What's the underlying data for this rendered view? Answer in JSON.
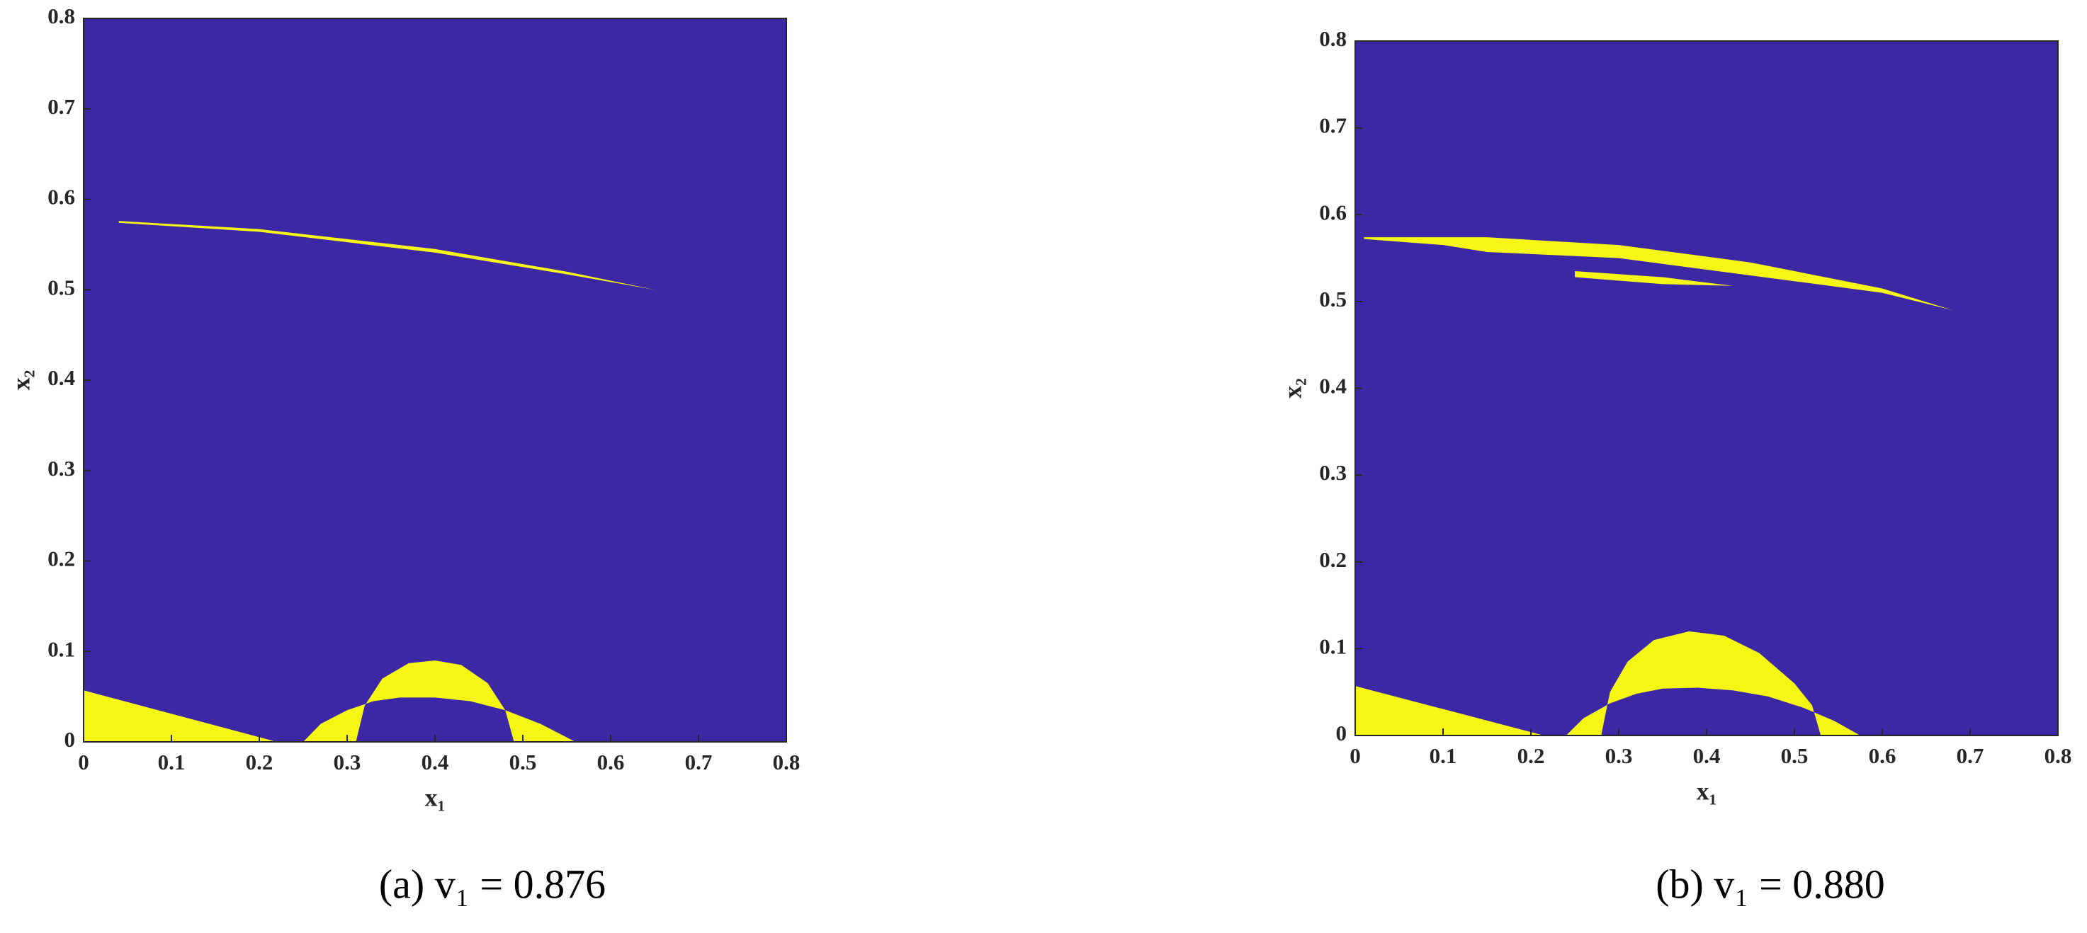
{
  "chart_data": [
    {
      "type": "area",
      "xlabel": "x₁",
      "ylabel": "x₂",
      "caption": "(a) v₁ = 0.876",
      "xlim": [
        0,
        0.8
      ],
      "ylim": [
        0,
        0.8
      ],
      "xticks": [
        0,
        0.1,
        0.2,
        0.3,
        0.4,
        0.5,
        0.6,
        0.7,
        0.8
      ],
      "yticks": [
        0,
        0.1,
        0.2,
        0.3,
        0.4,
        0.5,
        0.6,
        0.7,
        0.8
      ],
      "background": "#3c27a5",
      "region": {
        "color": "#f6f614",
        "x": [
          0,
          0,
          0.22,
          null,
          0.25,
          0.27,
          0.3,
          0.33,
          0.36,
          0.4,
          0.44,
          0.48,
          0.52,
          0.56,
          null,
          0.31,
          0.32,
          0.34,
          0.37,
          0.4,
          0.43,
          0.46,
          0.48,
          0.49,
          null,
          0.04,
          0.2,
          0.4,
          0.55,
          0.65,
          0.55,
          0.4,
          0.2,
          0.04
        ],
        "y": [
          0,
          0.057,
          0,
          null,
          0,
          0.02,
          0.035,
          0.045,
          0.049,
          0.049,
          0.045,
          0.035,
          0.02,
          0,
          null,
          0,
          0.04,
          0.07,
          0.087,
          0.09,
          0.085,
          0.065,
          0.035,
          0,
          null,
          0.576,
          0.567,
          0.545,
          0.52,
          0.5,
          0.517,
          0.541,
          0.564,
          0.574
        ]
      }
    },
    {
      "type": "area",
      "xlabel": "x₁",
      "ylabel": "x₂",
      "caption": "(b) v₁ = 0.880",
      "xlim": [
        0,
        0.8
      ],
      "ylim": [
        0,
        0.8
      ],
      "xticks": [
        0,
        0.1,
        0.2,
        0.3,
        0.4,
        0.5,
        0.6,
        0.7,
        0.8
      ],
      "yticks": [
        0,
        0.1,
        0.2,
        0.3,
        0.4,
        0.5,
        0.6,
        0.7,
        0.8
      ],
      "background": "#3c27a5",
      "region": {
        "color": "#f6f614",
        "x": [
          0,
          0,
          0.215,
          null,
          0.24,
          0.26,
          0.29,
          0.32,
          0.35,
          0.39,
          0.43,
          0.47,
          0.51,
          0.545,
          0.575,
          null,
          0.28,
          0.29,
          0.31,
          0.34,
          0.38,
          0.42,
          0.46,
          0.5,
          0.52,
          0.53,
          null,
          0.01,
          0.15,
          0.3,
          0.45,
          0.6,
          0.68,
          0.6,
          0.45,
          0.3,
          0.15,
          0.1,
          0.01,
          null,
          0.25,
          0.35,
          0.43,
          0.35,
          0.25
        ],
        "y": [
          0,
          0.057,
          0,
          null,
          0,
          0.02,
          0.037,
          0.048,
          0.054,
          0.055,
          0.052,
          0.045,
          0.032,
          0.017,
          0,
          null,
          0,
          0.05,
          0.085,
          0.11,
          0.12,
          0.115,
          0.095,
          0.06,
          0.035,
          0,
          null,
          0.574,
          0.574,
          0.565,
          0.545,
          0.515,
          0.49,
          0.51,
          0.53,
          0.55,
          0.557,
          0.565,
          0.572,
          null,
          0.535,
          0.528,
          0.518,
          0.52,
          0.528
        ]
      }
    }
  ]
}
